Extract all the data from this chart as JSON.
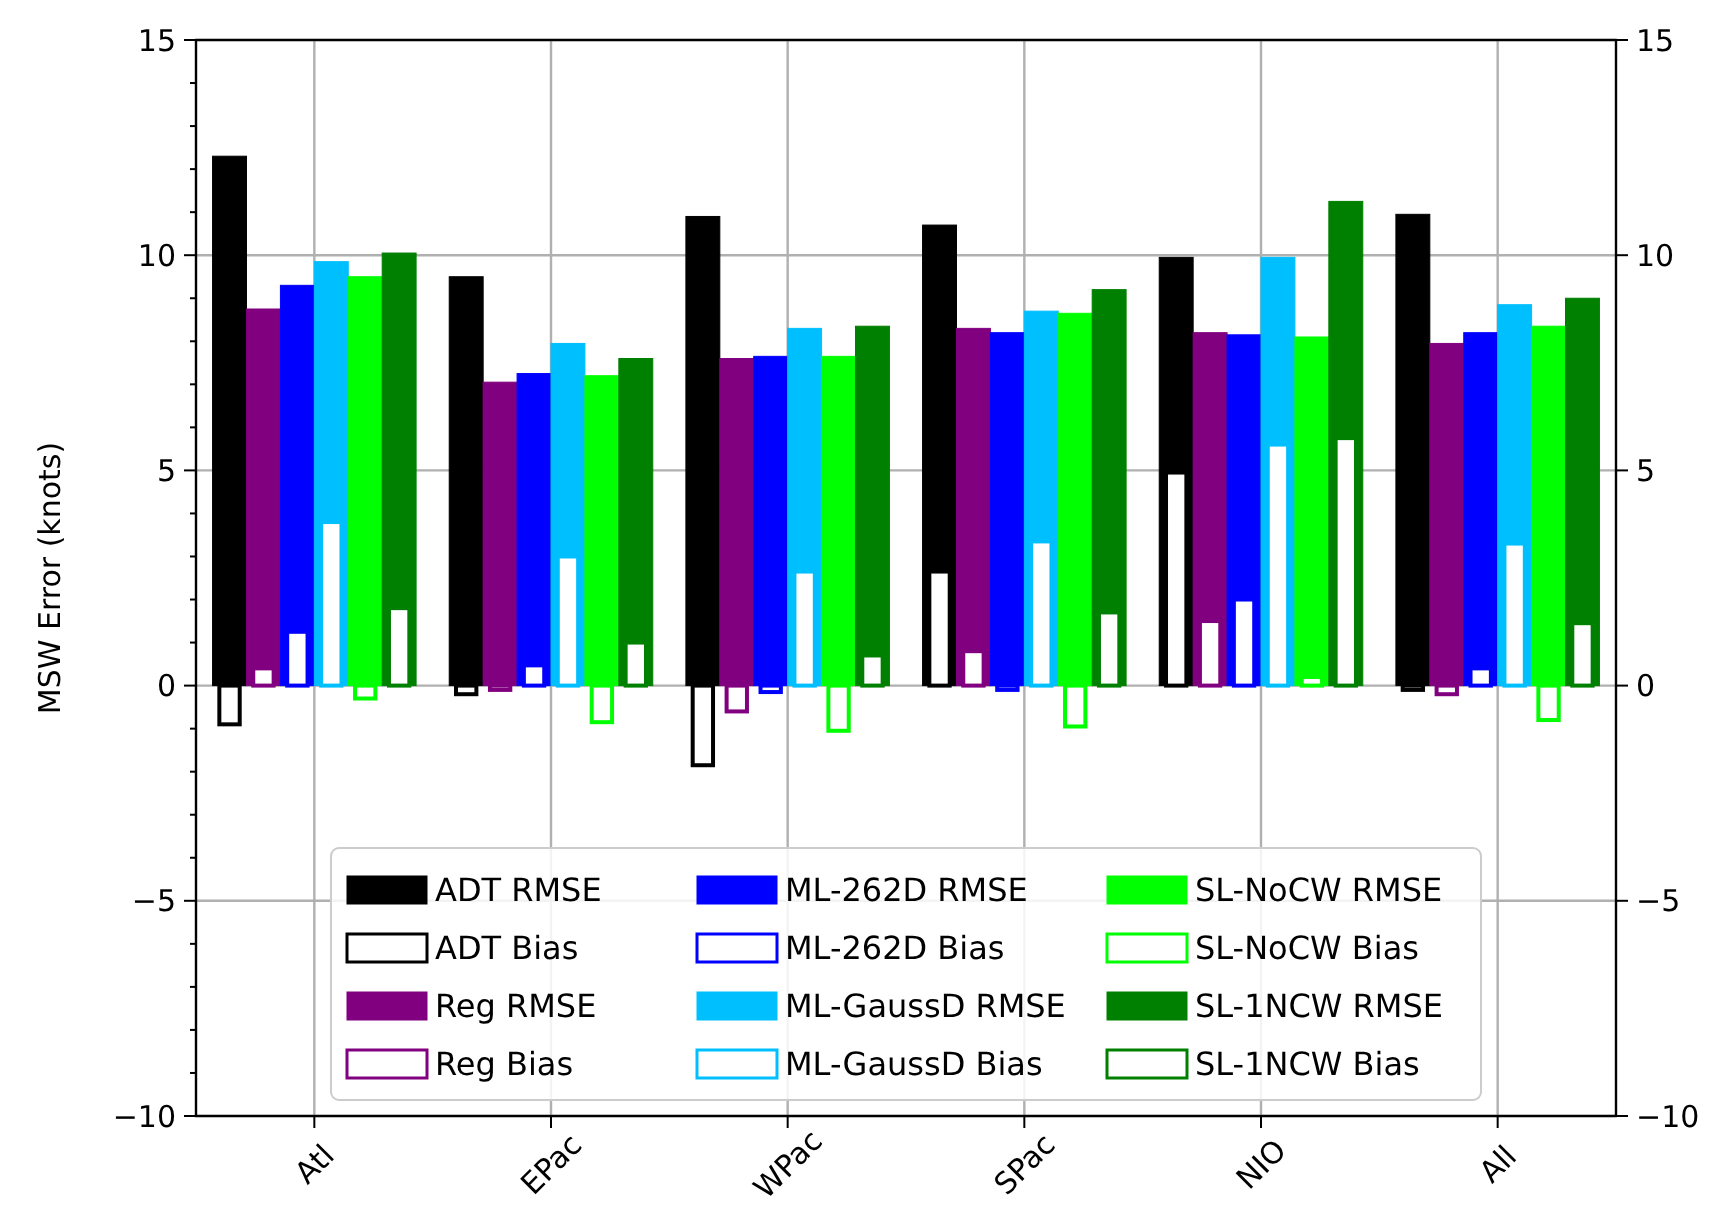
{
  "chart_data": {
    "type": "bar",
    "ylabel": "MSW Error (knots)",
    "categories": [
      "Atl",
      "EPac",
      "WPac",
      "SPac",
      "NIO",
      "All"
    ],
    "series": [
      {
        "name": "ADT RMSE",
        "color": "#000000",
        "values": [
          12.3,
          9.5,
          10.9,
          10.7,
          9.95,
          10.95
        ]
      },
      {
        "name": "ADT Bias",
        "color": "#000000",
        "values": [
          -0.9,
          -0.2,
          -1.85,
          2.65,
          4.95,
          -0.1
        ]
      },
      {
        "name": "Reg RMSE",
        "color": "#800080",
        "values": [
          8.75,
          7.05,
          7.6,
          8.3,
          8.2,
          7.95
        ]
      },
      {
        "name": "Reg Bias",
        "color": "#800080",
        "values": [
          0.4,
          -0.1,
          -0.6,
          0.8,
          1.5,
          -0.2
        ]
      },
      {
        "name": "ML-262D RMSE",
        "color": "#0000ff",
        "values": [
          9.3,
          7.25,
          7.65,
          8.2,
          8.15,
          8.2
        ]
      },
      {
        "name": "ML-262D Bias",
        "color": "#0000ff",
        "values": [
          1.25,
          0.47,
          -0.15,
          -0.1,
          2.0,
          0.4
        ]
      },
      {
        "name": "ML-GaussD RMSE",
        "color": "#00bfff",
        "values": [
          9.85,
          7.95,
          8.3,
          8.7,
          9.95,
          8.85
        ]
      },
      {
        "name": "ML-GaussD Bias",
        "color": "#00bfff",
        "values": [
          3.8,
          3.0,
          2.65,
          3.35,
          5.6,
          3.3
        ]
      },
      {
        "name": "SL-NoCW RMSE",
        "color": "#00ff00",
        "values": [
          9.5,
          7.2,
          7.65,
          8.65,
          8.1,
          8.35
        ]
      },
      {
        "name": "SL-NoCW Bias",
        "color": "#00ff00",
        "values": [
          -0.3,
          -0.85,
          -1.05,
          -0.95,
          0.2,
          -0.8
        ]
      },
      {
        "name": "SL-1NCW RMSE",
        "color": "#008000",
        "values": [
          10.05,
          7.6,
          8.35,
          9.2,
          11.25,
          9.0
        ]
      },
      {
        "name": "SL-1NCW Bias",
        "color": "#008000",
        "values": [
          1.8,
          1.0,
          0.7,
          1.7,
          5.75,
          1.45
        ]
      }
    ],
    "ylim": [
      -10,
      15
    ],
    "yticks": [
      -10,
      {
        "value": -9,
        "label": null
      },
      {
        "value": -8,
        "label": null
      },
      {
        "value": -7,
        "label": null
      },
      {
        "value": -6,
        "label": null
      },
      {
        "value": -5,
        "label": "−5"
      },
      {
        "value": -4,
        "label": null
      },
      {
        "value": -3,
        "label": null
      },
      {
        "value": -2,
        "label": null
      },
      {
        "value": -1,
        "label": null
      },
      0,
      {
        "value": 1,
        "label": null
      },
      {
        "value": 2,
        "label": null
      },
      {
        "value": 3,
        "label": null
      },
      {
        "value": 4,
        "label": null
      },
      5,
      {
        "value": 6,
        "label": null
      },
      {
        "value": 7,
        "label": null
      },
      {
        "value": 8,
        "label": null
      },
      {
        "value": 9,
        "label": null
      },
      10,
      {
        "value": 11,
        "label": null
      },
      {
        "value": 12,
        "label": null
      },
      {
        "value": 13,
        "label": null
      },
      {
        "value": 14,
        "label": null
      },
      15
    ],
    "y2lim": [
      -10,
      15
    ],
    "y2ticks": [
      -10,
      {
        "value": -5,
        "label": "−5"
      },
      0,
      5,
      10,
      15
    ],
    "grid": true,
    "legend": "bottom"
  }
}
